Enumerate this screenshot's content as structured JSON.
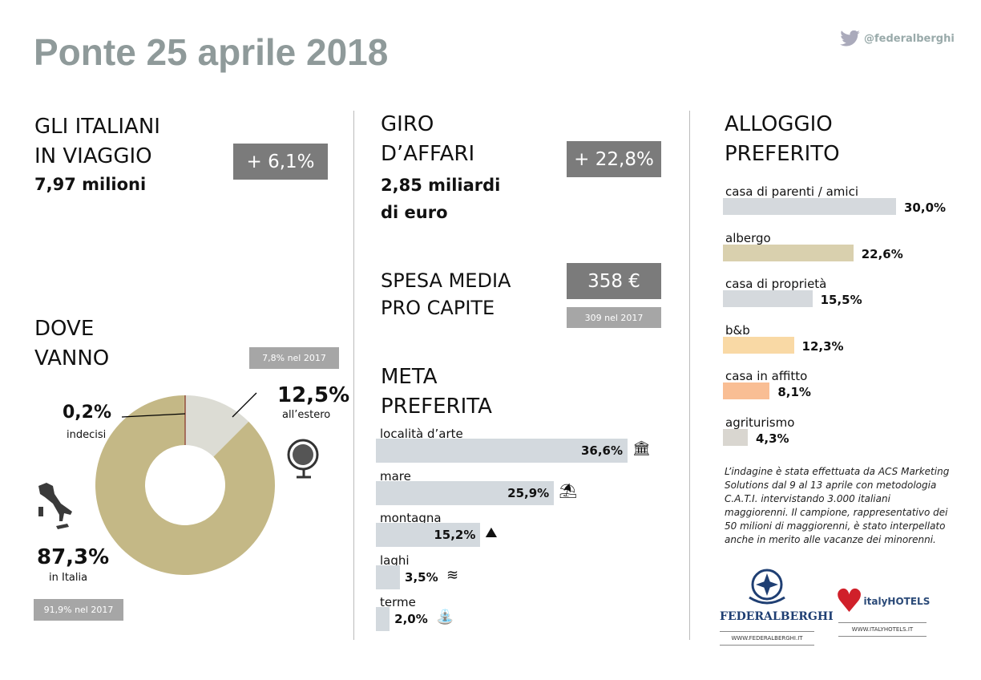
{
  "header": {
    "title": "Ponte 25 aprile 2018",
    "twitter": "@federalberghi",
    "twitter_icon": "twitter-bird-icon"
  },
  "travelers": {
    "heading1": "GLI ITALIANI",
    "heading2": "IN VIAGGIO",
    "value": "7,97 milioni",
    "change": "+ 6,1%"
  },
  "turnover": {
    "heading1": "GIRO",
    "heading2": "D’AFFARI",
    "value1": "2,85 miliardi",
    "value2": "di euro",
    "change": "+ 22,8%"
  },
  "spending": {
    "heading1": "SPESA MEDIA",
    "heading2": "PRO CAPITE",
    "value": "358 €",
    "previous": "309 nel 2017"
  },
  "destination": {
    "heading1": "DOVE",
    "heading2": "VANNO",
    "abroad_prev": "7,8% nel 2017",
    "italy_prev": "91,9% nel 2017",
    "abroad_value": "12,5%",
    "abroad_label": "all’estero",
    "undecided_value": "0,2%",
    "undecided_label": "indecisi",
    "italy_value": "87,3%",
    "italy_label": "in Italia"
  },
  "meta": {
    "heading1": "META",
    "heading2": "PREFERITA"
  },
  "alloggio": {
    "heading1": "ALLOGGIO",
    "heading2": "PREFERITO"
  },
  "note": "L’indagine è stata effettuata da ACS Marketing Solutions dal 9 al 13 aprile con metodologia C.A.T.I. intervistando 3.000 italiani maggiorenni. Il campione, rappresentativo dei 50 milioni di maggiorenni, è stato interpellato anche in merito alle vacanze dei minorenni.",
  "logos": {
    "federalberghi": "FEDERALBERGHI",
    "federalberghi_url": "WWW.FEDERALBERGHI.IT",
    "italyhotels": "italyHOTELS",
    "italyhotels_url": "WWW.ITALYHOTELS.IT"
  },
  "chart_data": [
    {
      "type": "pie",
      "title": "DOVE VANNO",
      "categories": [
        "in Italia",
        "all’estero",
        "indecisi"
      ],
      "values": [
        87.3,
        12.5,
        0.2
      ],
      "colors": [
        "#c4b886",
        "#dcdcd4",
        "#c4b886"
      ]
    },
    {
      "type": "bar",
      "title": "META PREFERITA",
      "categories": [
        "località d’arte",
        "mare",
        "montagna",
        "laghi",
        "terme"
      ],
      "values": [
        36.6,
        25.9,
        15.2,
        3.5,
        2.0
      ],
      "labels": [
        "36,6%",
        "25,9%",
        "15,2%",
        "3,5%",
        "2,0%"
      ],
      "icons": [
        "temple-icon",
        "beach-umbrella-icon",
        "mountains-icon",
        "lake-icon",
        "fountain-icon"
      ],
      "color": "#d3d9de"
    },
    {
      "type": "bar",
      "title": "ALLOGGIO PREFERITO",
      "categories": [
        "casa di parenti / amici",
        "albergo",
        "casa di proprietà",
        "b&b",
        "casa in affitto",
        "agriturismo"
      ],
      "values": [
        30.0,
        22.6,
        15.5,
        12.3,
        8.1,
        4.3
      ],
      "labels": [
        "30,0%",
        "22,6%",
        "15,5%",
        "12,3%",
        "8,1%",
        "4,3%"
      ],
      "colors": [
        "#d5d9dd",
        "#d9d0ae",
        "#d5d9dd",
        "#f9d9a5",
        "#f9be94",
        "#d9d6d0"
      ]
    }
  ]
}
